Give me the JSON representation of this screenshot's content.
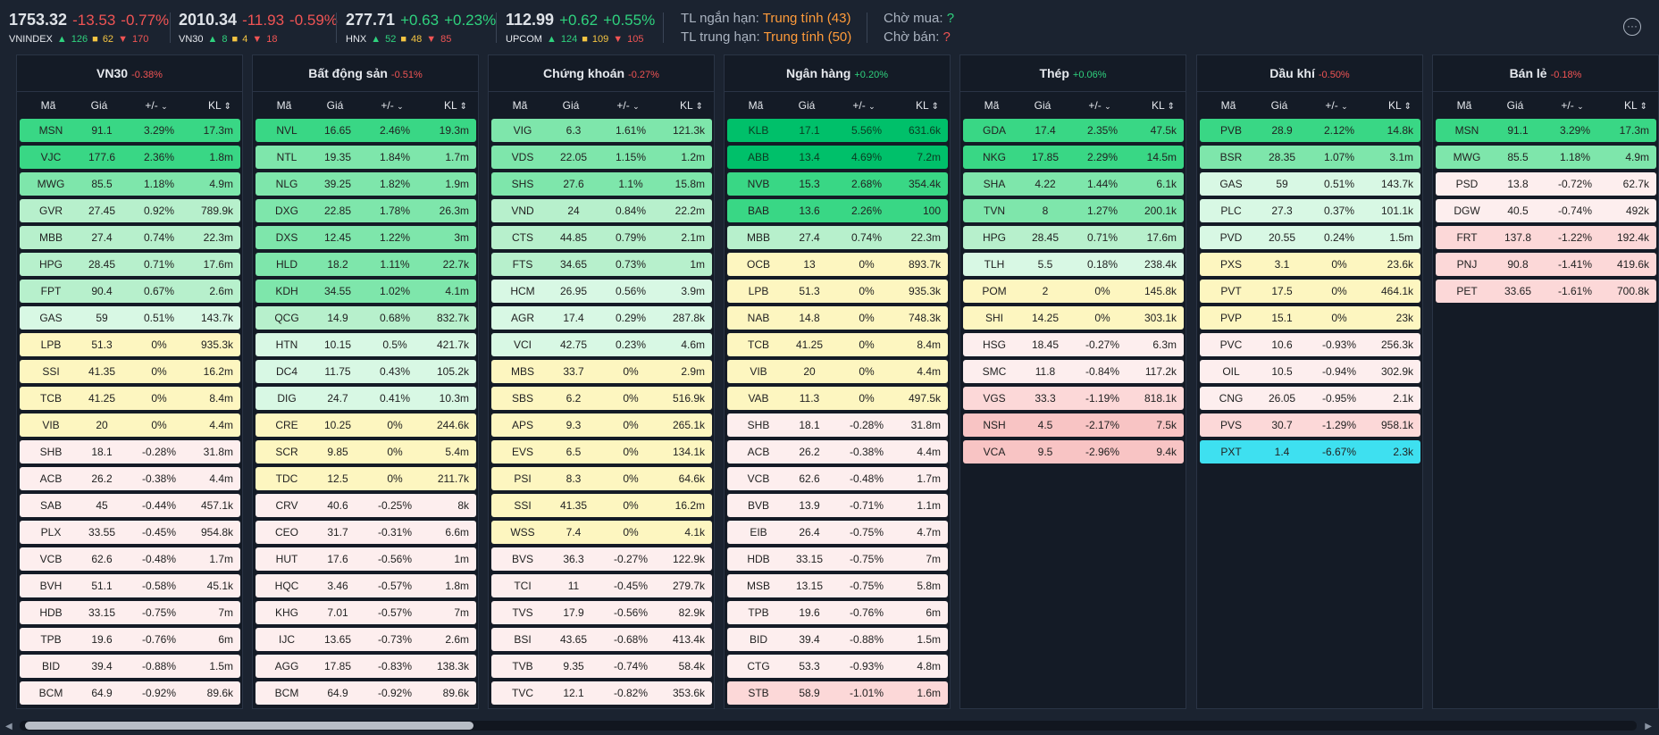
{
  "indices": [
    {
      "value": "1753.32",
      "change": "-13.53",
      "pct": "-0.77%",
      "dir": "down",
      "name": "VNINDEX",
      "up": "126",
      "flat": "62",
      "down": "170"
    },
    {
      "value": "2010.34",
      "change": "-11.93",
      "pct": "-0.59%",
      "dir": "down",
      "name": "VN30",
      "up": "8",
      "flat": "4",
      "down": "18"
    },
    {
      "value": "277.71",
      "change": "+0.63",
      "pct": "+0.23%",
      "dir": "up",
      "name": "HNX",
      "up": "52",
      "flat": "48",
      "down": "85"
    },
    {
      "value": "112.99",
      "change": "+0.62",
      "pct": "+0.55%",
      "dir": "up",
      "name": "UPCOM",
      "up": "124",
      "flat": "109",
      "down": "105"
    }
  ],
  "trend": {
    "short_label": "TL ngắn hạn:",
    "short_value": "Trung tính",
    "short_count": "(43)",
    "mid_label": "TL trung hạn:",
    "mid_value": "Trung tính",
    "mid_count": "(50)"
  },
  "wait": {
    "buy_label": "Chờ mua:",
    "buy_value": "?",
    "sell_label": "Chờ bán:",
    "sell_value": "?"
  },
  "menu_icon": "more-options-icon",
  "columns": {
    "code": "Mã",
    "price": "Giá",
    "change": "+/-",
    "volume": "KL"
  },
  "colors": {
    "up_strong": "#00c06a",
    "up_3": "#39d785",
    "up_2": "#7ee6ab",
    "up_1": "#b7f0cc",
    "up_0": "#d8f8e4",
    "flat": "#fdf6c0",
    "down_0": "#fdeeee",
    "down_1": "#fcd8d8",
    "down_2": "#f8c4c4",
    "ceiling_floor": "#3ee0f0"
  },
  "panels": [
    {
      "name": "VN30",
      "pct": "-0.38%",
      "dir": "down",
      "rows": [
        [
          "MSN",
          "91.1",
          "3.29%",
          "17.3m"
        ],
        [
          "VJC",
          "177.6",
          "2.36%",
          "1.8m"
        ],
        [
          "MWG",
          "85.5",
          "1.18%",
          "4.9m"
        ],
        [
          "GVR",
          "27.45",
          "0.92%",
          "789.9k"
        ],
        [
          "MBB",
          "27.4",
          "0.74%",
          "22.3m"
        ],
        [
          "HPG",
          "28.45",
          "0.71%",
          "17.6m"
        ],
        [
          "FPT",
          "90.4",
          "0.67%",
          "2.6m"
        ],
        [
          "GAS",
          "59",
          "0.51%",
          "143.7k"
        ],
        [
          "LPB",
          "51.3",
          "0%",
          "935.3k"
        ],
        [
          "SSI",
          "41.35",
          "0%",
          "16.2m"
        ],
        [
          "TCB",
          "41.25",
          "0%",
          "8.4m"
        ],
        [
          "VIB",
          "20",
          "0%",
          "4.4m"
        ],
        [
          "SHB",
          "18.1",
          "-0.28%",
          "31.8m"
        ],
        [
          "ACB",
          "26.2",
          "-0.38%",
          "4.4m"
        ],
        [
          "SAB",
          "45",
          "-0.44%",
          "457.1k"
        ],
        [
          "PLX",
          "33.55",
          "-0.45%",
          "954.8k"
        ],
        [
          "VCB",
          "62.6",
          "-0.48%",
          "1.7m"
        ],
        [
          "BVH",
          "51.1",
          "-0.58%",
          "45.1k"
        ],
        [
          "HDB",
          "33.15",
          "-0.75%",
          "7m"
        ],
        [
          "TPB",
          "19.6",
          "-0.76%",
          "6m"
        ],
        [
          "BID",
          "39.4",
          "-0.88%",
          "1.5m"
        ],
        [
          "BCM",
          "64.9",
          "-0.92%",
          "89.6k"
        ]
      ]
    },
    {
      "name": "Bất động sản",
      "pct": "-0.51%",
      "dir": "down",
      "rows": [
        [
          "NVL",
          "16.65",
          "2.46%",
          "19.3m"
        ],
        [
          "NTL",
          "19.35",
          "1.84%",
          "1.7m"
        ],
        [
          "NLG",
          "39.25",
          "1.82%",
          "1.9m"
        ],
        [
          "DXG",
          "22.85",
          "1.78%",
          "26.3m"
        ],
        [
          "DXS",
          "12.45",
          "1.22%",
          "3m"
        ],
        [
          "HLD",
          "18.2",
          "1.11%",
          "22.7k"
        ],
        [
          "KDH",
          "34.55",
          "1.02%",
          "4.1m"
        ],
        [
          "QCG",
          "14.9",
          "0.68%",
          "832.7k"
        ],
        [
          "HTN",
          "10.15",
          "0.5%",
          "421.7k"
        ],
        [
          "DC4",
          "11.75",
          "0.43%",
          "105.2k"
        ],
        [
          "DIG",
          "24.7",
          "0.41%",
          "10.3m"
        ],
        [
          "CRE",
          "10.25",
          "0%",
          "244.6k"
        ],
        [
          "SCR",
          "9.85",
          "0%",
          "5.4m"
        ],
        [
          "TDC",
          "12.5",
          "0%",
          "211.7k"
        ],
        [
          "CRV",
          "40.6",
          "-0.25%",
          "8k"
        ],
        [
          "CEO",
          "31.7",
          "-0.31%",
          "6.6m"
        ],
        [
          "HUT",
          "17.6",
          "-0.56%",
          "1m"
        ],
        [
          "HQC",
          "3.46",
          "-0.57%",
          "1.8m"
        ],
        [
          "KHG",
          "7.01",
          "-0.57%",
          "7m"
        ],
        [
          "IJC",
          "13.65",
          "-0.73%",
          "2.6m"
        ],
        [
          "AGG",
          "17.85",
          "-0.83%",
          "138.3k"
        ],
        [
          "BCM",
          "64.9",
          "-0.92%",
          "89.6k"
        ]
      ]
    },
    {
      "name": "Chứng khoán",
      "pct": "-0.27%",
      "dir": "down",
      "rows": [
        [
          "VIG",
          "6.3",
          "1.61%",
          "121.3k"
        ],
        [
          "VDS",
          "22.05",
          "1.15%",
          "1.2m"
        ],
        [
          "SHS",
          "27.6",
          "1.1%",
          "15.8m"
        ],
        [
          "VND",
          "24",
          "0.84%",
          "22.2m"
        ],
        [
          "CTS",
          "44.85",
          "0.79%",
          "2.1m"
        ],
        [
          "FTS",
          "34.65",
          "0.73%",
          "1m"
        ],
        [
          "HCM",
          "26.95",
          "0.56%",
          "3.9m"
        ],
        [
          "AGR",
          "17.4",
          "0.29%",
          "287.8k"
        ],
        [
          "VCI",
          "42.75",
          "0.23%",
          "4.6m"
        ],
        [
          "MBS",
          "33.7",
          "0%",
          "2.9m"
        ],
        [
          "SBS",
          "6.2",
          "0%",
          "516.9k"
        ],
        [
          "APS",
          "9.3",
          "0%",
          "265.1k"
        ],
        [
          "EVS",
          "6.5",
          "0%",
          "134.1k"
        ],
        [
          "PSI",
          "8.3",
          "0%",
          "64.6k"
        ],
        [
          "SSI",
          "41.35",
          "0%",
          "16.2m"
        ],
        [
          "WSS",
          "7.4",
          "0%",
          "4.1k"
        ],
        [
          "BVS",
          "36.3",
          "-0.27%",
          "122.9k"
        ],
        [
          "TCI",
          "11",
          "-0.45%",
          "279.7k"
        ],
        [
          "TVS",
          "17.9",
          "-0.56%",
          "82.9k"
        ],
        [
          "BSI",
          "43.65",
          "-0.68%",
          "413.4k"
        ],
        [
          "TVB",
          "9.35",
          "-0.74%",
          "58.4k"
        ],
        [
          "TVC",
          "12.1",
          "-0.82%",
          "353.6k"
        ]
      ]
    },
    {
      "name": "Ngân hàng",
      "pct": "+0.20%",
      "dir": "up",
      "rows": [
        [
          "KLB",
          "17.1",
          "5.56%",
          "631.6k"
        ],
        [
          "ABB",
          "13.4",
          "4.69%",
          "7.2m"
        ],
        [
          "NVB",
          "15.3",
          "2.68%",
          "354.4k"
        ],
        [
          "BAB",
          "13.6",
          "2.26%",
          "100"
        ],
        [
          "MBB",
          "27.4",
          "0.74%",
          "22.3m"
        ],
        [
          "OCB",
          "13",
          "0%",
          "893.7k"
        ],
        [
          "LPB",
          "51.3",
          "0%",
          "935.3k"
        ],
        [
          "NAB",
          "14.8",
          "0%",
          "748.3k"
        ],
        [
          "TCB",
          "41.25",
          "0%",
          "8.4m"
        ],
        [
          "VIB",
          "20",
          "0%",
          "4.4m"
        ],
        [
          "VAB",
          "11.3",
          "0%",
          "497.5k"
        ],
        [
          "SHB",
          "18.1",
          "-0.28%",
          "31.8m"
        ],
        [
          "ACB",
          "26.2",
          "-0.38%",
          "4.4m"
        ],
        [
          "VCB",
          "62.6",
          "-0.48%",
          "1.7m"
        ],
        [
          "BVB",
          "13.9",
          "-0.71%",
          "1.1m"
        ],
        [
          "EIB",
          "26.4",
          "-0.75%",
          "4.7m"
        ],
        [
          "HDB",
          "33.15",
          "-0.75%",
          "7m"
        ],
        [
          "MSB",
          "13.15",
          "-0.75%",
          "5.8m"
        ],
        [
          "TPB",
          "19.6",
          "-0.76%",
          "6m"
        ],
        [
          "BID",
          "39.4",
          "-0.88%",
          "1.5m"
        ],
        [
          "CTG",
          "53.3",
          "-0.93%",
          "4.8m"
        ],
        [
          "STB",
          "58.9",
          "-1.01%",
          "1.6m"
        ]
      ]
    },
    {
      "name": "Thép",
      "pct": "+0.06%",
      "dir": "up",
      "rows": [
        [
          "GDA",
          "17.4",
          "2.35%",
          "47.5k"
        ],
        [
          "NKG",
          "17.85",
          "2.29%",
          "14.5m"
        ],
        [
          "SHA",
          "4.22",
          "1.44%",
          "6.1k"
        ],
        [
          "TVN",
          "8",
          "1.27%",
          "200.1k"
        ],
        [
          "HPG",
          "28.45",
          "0.71%",
          "17.6m"
        ],
        [
          "TLH",
          "5.5",
          "0.18%",
          "238.4k"
        ],
        [
          "POM",
          "2",
          "0%",
          "145.8k"
        ],
        [
          "SHI",
          "14.25",
          "0%",
          "303.1k"
        ],
        [
          "HSG",
          "18.45",
          "-0.27%",
          "6.3m"
        ],
        [
          "SMC",
          "11.8",
          "-0.84%",
          "117.2k"
        ],
        [
          "VGS",
          "33.3",
          "-1.19%",
          "818.1k"
        ],
        [
          "NSH",
          "4.5",
          "-2.17%",
          "7.5k"
        ],
        [
          "VCA",
          "9.5",
          "-2.96%",
          "9.4k"
        ]
      ]
    },
    {
      "name": "Dầu khí",
      "pct": "-0.50%",
      "dir": "down",
      "rows": [
        [
          "PVB",
          "28.9",
          "2.12%",
          "14.8k"
        ],
        [
          "BSR",
          "28.35",
          "1.07%",
          "3.1m"
        ],
        [
          "GAS",
          "59",
          "0.51%",
          "143.7k"
        ],
        [
          "PLC",
          "27.3",
          "0.37%",
          "101.1k"
        ],
        [
          "PVD",
          "20.55",
          "0.24%",
          "1.5m"
        ],
        [
          "PXS",
          "3.1",
          "0%",
          "23.6k"
        ],
        [
          "PVT",
          "17.5",
          "0%",
          "464.1k"
        ],
        [
          "PVP",
          "15.1",
          "0%",
          "23k"
        ],
        [
          "PVC",
          "10.6",
          "-0.93%",
          "256.3k"
        ],
        [
          "OIL",
          "10.5",
          "-0.94%",
          "302.9k"
        ],
        [
          "CNG",
          "26.05",
          "-0.95%",
          "2.1k"
        ],
        [
          "PVS",
          "30.7",
          "-1.29%",
          "958.1k"
        ],
        [
          "PXT",
          "1.4",
          "-6.67%",
          "2.3k"
        ]
      ]
    },
    {
      "name": "Bán lẻ",
      "pct": "-0.18%",
      "dir": "down",
      "rows": [
        [
          "MSN",
          "91.1",
          "3.29%",
          "17.3m"
        ],
        [
          "MWG",
          "85.5",
          "1.18%",
          "4.9m"
        ],
        [
          "PSD",
          "13.8",
          "-0.72%",
          "62.7k"
        ],
        [
          "DGW",
          "40.5",
          "-0.74%",
          "492k"
        ],
        [
          "FRT",
          "137.8",
          "-1.22%",
          "192.4k"
        ],
        [
          "PNJ",
          "90.8",
          "-1.41%",
          "419.6k"
        ],
        [
          "PET",
          "33.65",
          "-1.61%",
          "700.8k"
        ]
      ]
    }
  ]
}
